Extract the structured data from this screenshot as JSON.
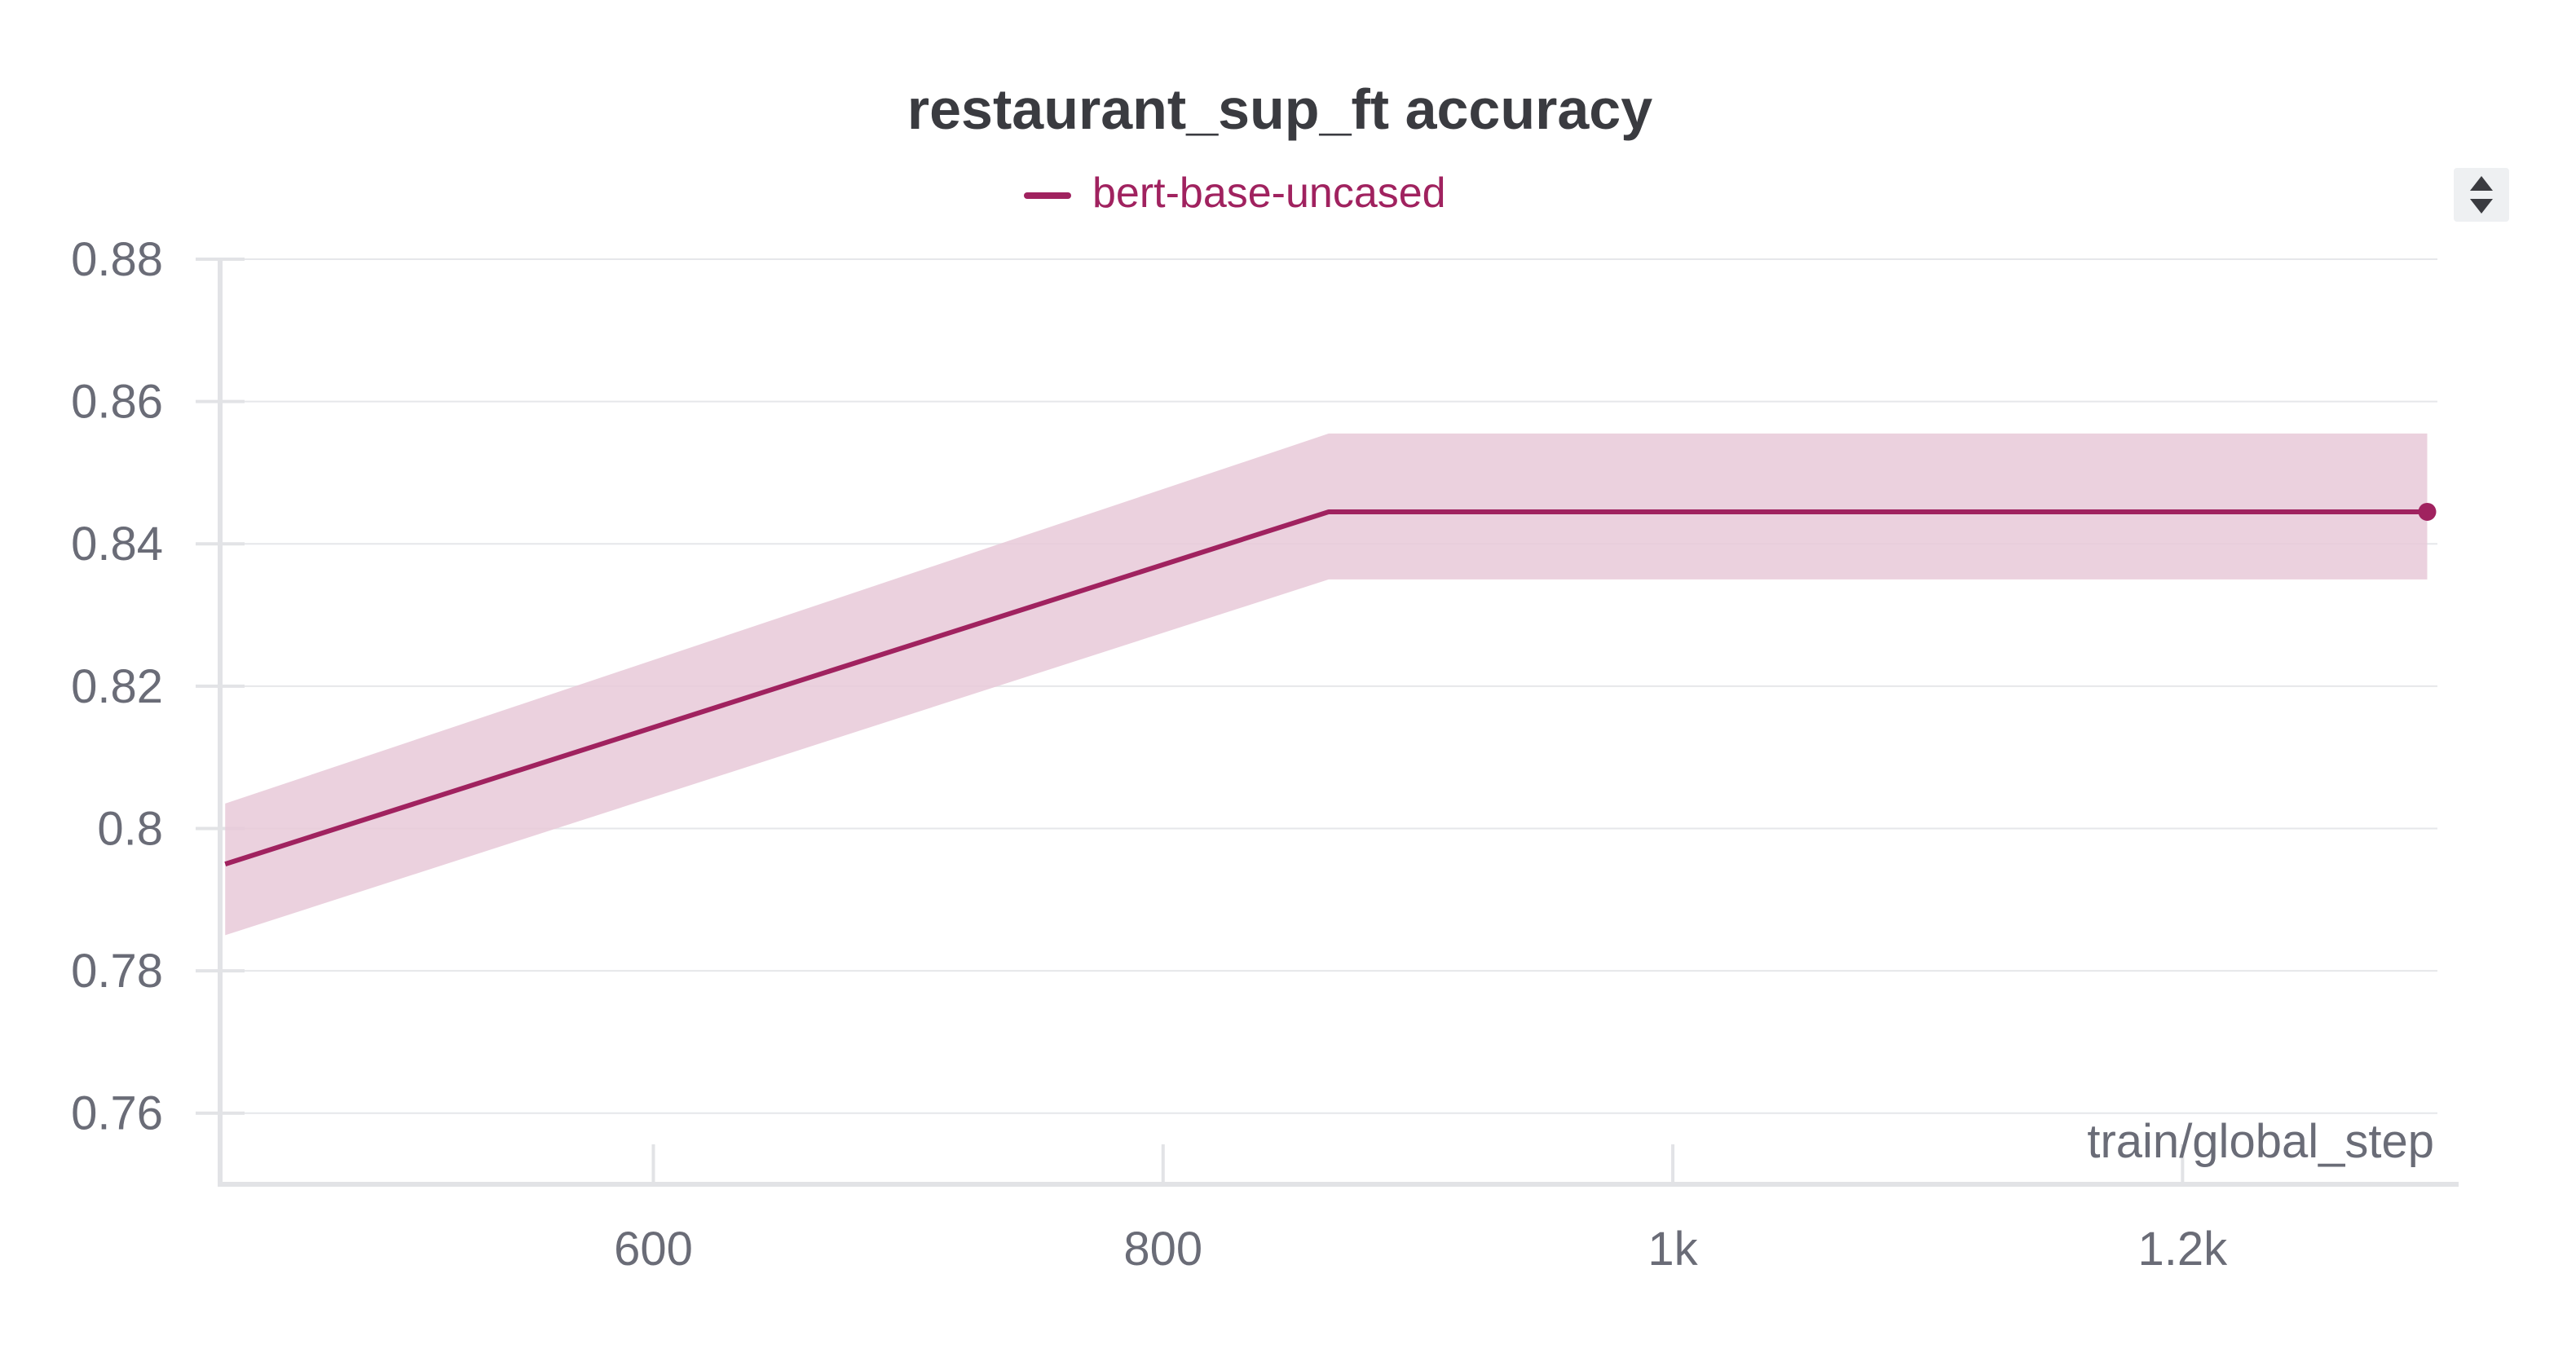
{
  "chart_data": {
    "type": "line",
    "title": "restaurant_sup_ft accuracy",
    "xlabel": "train/global_step",
    "ylabel": "",
    "xlim": [
      430,
      1300
    ],
    "ylim": [
      0.75,
      0.88
    ],
    "x_ticks": [
      600,
      800,
      1000,
      1200
    ],
    "x_tick_labels": [
      "600",
      "800",
      "1k",
      "1.2k"
    ],
    "y_ticks": [
      0.76,
      0.78,
      0.8,
      0.82,
      0.84,
      0.86,
      0.88
    ],
    "y_tick_labels": [
      "0.76",
      "0.78",
      "0.8",
      "0.82",
      "0.84",
      "0.86",
      "0.88"
    ],
    "grid": true,
    "legend_position": "top-center",
    "series": [
      {
        "name": "bert-base-uncased",
        "color": "#a0225f",
        "band_color": "#e8c9d8",
        "x": [
          432,
          865,
          1296
        ],
        "values": [
          0.795,
          0.8445,
          0.8445
        ],
        "lower": [
          0.785,
          0.835,
          0.835
        ],
        "upper": [
          0.8035,
          0.8555,
          0.8555
        ]
      }
    ]
  },
  "controls": {
    "sort_icon": "sort-updown-icon"
  }
}
